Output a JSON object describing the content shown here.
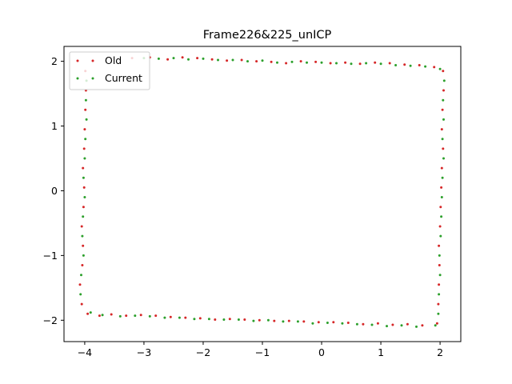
{
  "chart_data": {
    "type": "scatter",
    "title": "Frame226&225_unICP",
    "xlabel": "",
    "ylabel": "",
    "xlim": [
      -4.35,
      2.35
    ],
    "ylim": [
      -2.33,
      2.23
    ],
    "xticks": [
      -4,
      -3,
      -2,
      -1,
      0,
      1,
      2
    ],
    "xtick_labels": [
      "−4",
      "−3",
      "−2",
      "−1",
      "0",
      "1",
      "2"
    ],
    "yticks": [
      -2,
      -1,
      0,
      1,
      2
    ],
    "ytick_labels": [
      "−2",
      "−1",
      "0",
      "1",
      "2"
    ],
    "grid": false,
    "legend_position": "upper-left",
    "series": [
      {
        "name": "Old",
        "color": "#d62728",
        "marker_size": 1.5,
        "points": [
          [
            -3.2,
            2.05
          ],
          [
            -2.9,
            2.06
          ],
          [
            -2.6,
            2.03
          ],
          [
            -2.35,
            2.06
          ],
          [
            -2.1,
            2.05
          ],
          [
            -1.85,
            2.03
          ],
          [
            -1.6,
            2.01
          ],
          [
            -1.35,
            2.02
          ],
          [
            -1.1,
            2.0
          ],
          [
            -0.85,
            1.99
          ],
          [
            -0.6,
            1.97
          ],
          [
            -0.35,
            2.0
          ],
          [
            -0.1,
            1.99
          ],
          [
            0.15,
            1.97
          ],
          [
            0.4,
            1.98
          ],
          [
            0.65,
            1.96
          ],
          [
            0.9,
            1.98
          ],
          [
            1.15,
            1.97
          ],
          [
            1.4,
            1.95
          ],
          [
            1.65,
            1.94
          ],
          [
            1.9,
            1.91
          ],
          [
            2.05,
            1.85
          ],
          [
            2.06,
            1.55
          ],
          [
            2.04,
            1.25
          ],
          [
            2.03,
            0.95
          ],
          [
            2.05,
            0.65
          ],
          [
            2.03,
            0.35
          ],
          [
            2.02,
            0.05
          ],
          [
            2.01,
            -0.25
          ],
          [
            2.0,
            -0.55
          ],
          [
            1.98,
            -0.85
          ],
          [
            1.99,
            -1.15
          ],
          [
            1.98,
            -1.45
          ],
          [
            1.97,
            -1.75
          ],
          [
            1.95,
            -2.05
          ],
          [
            1.7,
            -2.08
          ],
          [
            1.45,
            -2.06
          ],
          [
            1.2,
            -2.07
          ],
          [
            0.95,
            -2.05
          ],
          [
            0.7,
            -2.06
          ],
          [
            0.45,
            -2.04
          ],
          [
            0.2,
            -2.03
          ],
          [
            -0.05,
            -2.03
          ],
          [
            -0.3,
            -2.02
          ],
          [
            -0.55,
            -2.01
          ],
          [
            -0.8,
            -2.01
          ],
          [
            -1.05,
            -2.0
          ],
          [
            -1.3,
            -1.99
          ],
          [
            -1.55,
            -1.98
          ],
          [
            -1.8,
            -1.99
          ],
          [
            -2.05,
            -1.97
          ],
          [
            -2.3,
            -1.96
          ],
          [
            -2.55,
            -1.95
          ],
          [
            -2.8,
            -1.93
          ],
          [
            -3.05,
            -1.92
          ],
          [
            -3.3,
            -1.93
          ],
          [
            -3.55,
            -1.91
          ],
          [
            -3.75,
            -1.93
          ],
          [
            -3.95,
            -1.9
          ],
          [
            -4.05,
            -1.75
          ],
          [
            -4.08,
            -1.45
          ],
          [
            -4.04,
            -1.15
          ],
          [
            -4.03,
            -0.85
          ],
          [
            -4.05,
            -0.55
          ],
          [
            -4.02,
            -0.25
          ],
          [
            -4.01,
            0.05
          ],
          [
            -4.03,
            0.35
          ],
          [
            -4.01,
            0.65
          ],
          [
            -4.0,
            0.95
          ],
          [
            -3.99,
            1.25
          ],
          [
            -3.98,
            1.55
          ],
          [
            -3.99,
            1.85
          ]
        ]
      },
      {
        "name": "Current",
        "color": "#2ca02c",
        "marker_size": 1.5,
        "points": [
          [
            -3.0,
            2.05
          ],
          [
            -2.75,
            2.04
          ],
          [
            -2.5,
            2.05
          ],
          [
            -2.25,
            2.03
          ],
          [
            -2.0,
            2.04
          ],
          [
            -1.75,
            2.02
          ],
          [
            -1.5,
            2.02
          ],
          [
            -1.25,
            2.0
          ],
          [
            -1.0,
            2.01
          ],
          [
            -0.75,
            1.98
          ],
          [
            -0.5,
            1.99
          ],
          [
            -0.25,
            1.98
          ],
          [
            0.0,
            1.98
          ],
          [
            0.25,
            1.97
          ],
          [
            0.5,
            1.96
          ],
          [
            0.75,
            1.97
          ],
          [
            1.0,
            1.96
          ],
          [
            1.25,
            1.94
          ],
          [
            1.5,
            1.93
          ],
          [
            1.75,
            1.92
          ],
          [
            2.0,
            1.88
          ],
          [
            2.07,
            1.7
          ],
          [
            2.05,
            1.4
          ],
          [
            2.06,
            1.1
          ],
          [
            2.04,
            0.8
          ],
          [
            2.06,
            0.5
          ],
          [
            2.04,
            0.2
          ],
          [
            2.03,
            -0.1
          ],
          [
            2.02,
            -0.4
          ],
          [
            2.01,
            -0.7
          ],
          [
            1.99,
            -1.0
          ],
          [
            2.0,
            -1.3
          ],
          [
            1.98,
            -1.6
          ],
          [
            1.97,
            -1.9
          ],
          [
            1.92,
            -2.08
          ],
          [
            1.6,
            -2.1
          ],
          [
            1.35,
            -2.08
          ],
          [
            1.1,
            -2.09
          ],
          [
            0.85,
            -2.07
          ],
          [
            0.6,
            -2.06
          ],
          [
            0.35,
            -2.05
          ],
          [
            0.1,
            -2.04
          ],
          [
            -0.15,
            -2.05
          ],
          [
            -0.4,
            -2.02
          ],
          [
            -0.65,
            -2.02
          ],
          [
            -0.9,
            -2.0
          ],
          [
            -1.15,
            -2.01
          ],
          [
            -1.4,
            -1.99
          ],
          [
            -1.65,
            -1.99
          ],
          [
            -1.9,
            -1.98
          ],
          [
            -2.15,
            -1.98
          ],
          [
            -2.4,
            -1.96
          ],
          [
            -2.65,
            -1.96
          ],
          [
            -2.9,
            -1.94
          ],
          [
            -3.15,
            -1.93
          ],
          [
            -3.4,
            -1.94
          ],
          [
            -3.7,
            -1.92
          ],
          [
            -3.9,
            -1.88
          ],
          [
            -4.07,
            -1.6
          ],
          [
            -4.06,
            -1.3
          ],
          [
            -4.02,
            -1.0
          ],
          [
            -4.04,
            -0.7
          ],
          [
            -4.03,
            -0.4
          ],
          [
            -4.0,
            -0.1
          ],
          [
            -4.02,
            0.2
          ],
          [
            -4.0,
            0.5
          ],
          [
            -3.99,
            0.8
          ],
          [
            -3.97,
            1.1
          ],
          [
            -3.98,
            1.4
          ],
          [
            -3.97,
            1.7
          ]
        ]
      }
    ]
  }
}
